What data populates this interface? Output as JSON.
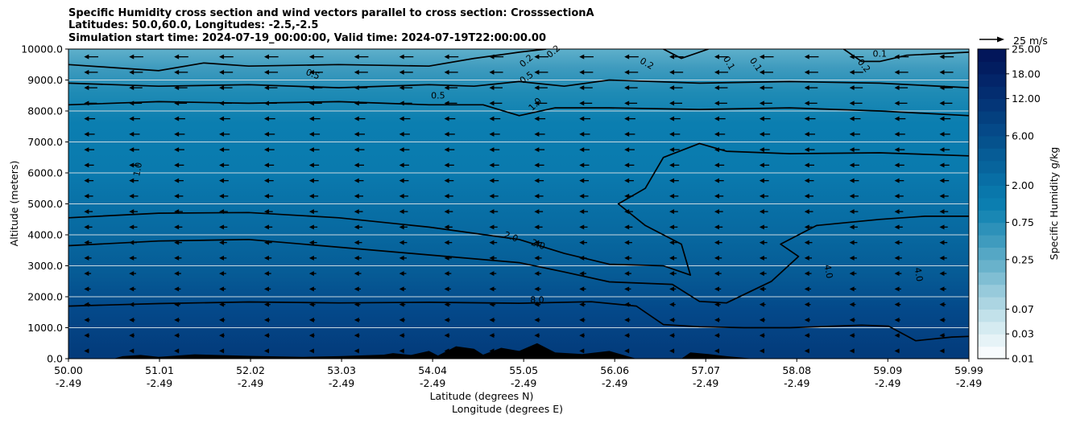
{
  "chart_data": {
    "type": "contour",
    "title_lines": [
      "Specific Humidity cross section and wind vectors parallel to cross section: CrosssectionA",
      "Latitudes: 50.0,60.0, Longitudes: -2.5,-2.5",
      "Simulation start time: 2024-07-19_00:00:00, Valid time: 2024-07-19T22:00:00.00"
    ],
    "ylabel": "Altitude (meters)",
    "xlabel_lat": "Latitude (degrees N)",
    "xlabel_lon": "Longitude (degrees E)",
    "ylim": [
      0,
      10000
    ],
    "xlim": [
      50.0,
      59.99
    ],
    "y_ticks": [
      "0.0",
      "1000.0",
      "2000.0",
      "3000.0",
      "4000.0",
      "5000.0",
      "6000.0",
      "7000.0",
      "8000.0",
      "9000.0",
      "10000.0"
    ],
    "x_ticks_lat": [
      "50.00",
      "51.01",
      "52.02",
      "53.03",
      "54.04",
      "55.05",
      "56.06",
      "57.07",
      "58.08",
      "59.09",
      "59.99"
    ],
    "x_ticks_lon": [
      "-2.49",
      "-2.49",
      "-2.49",
      "-2.49",
      "-2.49",
      "-2.49",
      "-2.49",
      "-2.49",
      "-2.49",
      "-2.49",
      "-2.49"
    ],
    "colorbar": {
      "label": "Specific Humidity g/kg",
      "levels": [
        0.01,
        0.02,
        0.03,
        0.05,
        0.07,
        0.1,
        0.15,
        0.2,
        0.25,
        0.3,
        0.5,
        0.75,
        1.0,
        1.5,
        2.0,
        3.0,
        4.0,
        5.0,
        6.0,
        8.0,
        10.0,
        12.0,
        15.0,
        18.0,
        20.0,
        25.0
      ],
      "tick_labels": [
        "0.01",
        "0.03",
        "0.07",
        "0.25",
        "0.75",
        "2.00",
        "6.00",
        "12.00",
        "18.00",
        "25.00"
      ],
      "colors": [
        "#f7fbfd",
        "#e6f3f7",
        "#d5ebf1",
        "#c2e1ea",
        "#acd5e2",
        "#97cadb",
        "#80bed3",
        "#69b2cb",
        "#55a7c5",
        "#3f9bbe",
        "#2d91b9",
        "#1987b4",
        "#0b7eb0",
        "#0977ab",
        "#086ea5",
        "#07649c",
        "#065c96",
        "#05528d",
        "#054988",
        "#04407f",
        "#043678",
        "#032d70",
        "#032569",
        "#021d60",
        "#02165a"
      ]
    },
    "quiver_key": {
      "label": "25 m/s",
      "speed": 25
    },
    "contour_labels": [
      "0.1",
      "0.2",
      "0.5",
      "1.0",
      "2.0",
      "4.0",
      "8.0"
    ],
    "contour_label_instances": [
      "0.1",
      "0.1",
      "0.1",
      "0.2",
      "0.2",
      "0.2",
      "0.2",
      "0.5",
      "0.5",
      "0.5",
      "1.0",
      "1.0",
      "2.0",
      "2.0",
      "4.0",
      "4.0",
      "8.0"
    ],
    "contours": [
      {
        "level": 8.0,
        "points": [
          [
            50.0,
            1700
          ],
          [
            51.0,
            1780
          ],
          [
            52.0,
            1830
          ],
          [
            53.0,
            1800
          ],
          [
            54.0,
            1820
          ],
          [
            55.0,
            1790
          ],
          [
            55.8,
            1840
          ],
          [
            56.3,
            1700
          ],
          [
            56.6,
            1100
          ],
          [
            57.0,
            1030
          ],
          [
            57.5,
            1000
          ],
          [
            58.0,
            1000
          ],
          [
            58.8,
            1080
          ],
          [
            59.1,
            1050
          ],
          [
            59.4,
            580
          ],
          [
            59.8,
            700
          ],
          [
            59.99,
            720
          ]
        ]
      },
      {
        "level": 4.0,
        "points": [
          [
            50.0,
            3650
          ],
          [
            51.0,
            3800
          ],
          [
            52.0,
            3850
          ],
          [
            53.0,
            3600
          ],
          [
            54.0,
            3350
          ],
          [
            55.0,
            3100
          ],
          [
            55.5,
            2800
          ],
          [
            56.0,
            2480
          ],
          [
            56.7,
            2400
          ],
          [
            57.0,
            1850
          ],
          [
            57.3,
            1800
          ],
          [
            57.8,
            2500
          ],
          [
            58.1,
            3300
          ],
          [
            57.9,
            3700
          ],
          [
            58.3,
            4300
          ],
          [
            59.0,
            4500
          ],
          [
            59.5,
            4600
          ],
          [
            59.99,
            4600
          ]
        ]
      },
      {
        "level": 2.0,
        "points": [
          [
            50.0,
            4550
          ],
          [
            51.0,
            4700
          ],
          [
            52.0,
            4720
          ],
          [
            53.0,
            4550
          ],
          [
            54.0,
            4250
          ],
          [
            55.0,
            3850
          ],
          [
            55.5,
            3400
          ],
          [
            56.0,
            3050
          ],
          [
            56.6,
            3000
          ],
          [
            56.9,
            2700
          ],
          [
            56.8,
            3700
          ],
          [
            56.4,
            4300
          ],
          [
            56.1,
            5000
          ],
          [
            56.4,
            5500
          ],
          [
            56.6,
            6500
          ],
          [
            57.0,
            6950
          ],
          [
            57.3,
            6700
          ],
          [
            58.0,
            6620
          ],
          [
            59.0,
            6650
          ],
          [
            59.99,
            6550
          ]
        ]
      },
      {
        "level": 1.0,
        "points": [
          [
            50.0,
            8200
          ],
          [
            51.0,
            8300
          ],
          [
            52.0,
            8250
          ],
          [
            53.0,
            8300
          ],
          [
            54.0,
            8200
          ],
          [
            54.6,
            8200
          ],
          [
            55.0,
            7850
          ],
          [
            55.4,
            8100
          ],
          [
            56.0,
            8100
          ],
          [
            57.0,
            8050
          ],
          [
            58.0,
            8100
          ],
          [
            59.0,
            8000
          ],
          [
            59.99,
            7850
          ]
        ]
      },
      {
        "level": 0.5,
        "points": [
          [
            50.0,
            8900
          ],
          [
            51.0,
            8800
          ],
          [
            52.0,
            8850
          ],
          [
            53.0,
            8750
          ],
          [
            54.0,
            8850
          ],
          [
            54.5,
            8800
          ],
          [
            55.0,
            8950
          ],
          [
            55.5,
            8800
          ],
          [
            56.0,
            9000
          ],
          [
            57.0,
            8900
          ],
          [
            58.0,
            8950
          ],
          [
            59.0,
            8900
          ],
          [
            59.99,
            8750
          ]
        ]
      },
      {
        "level": 0.2,
        "points": [
          [
            50.0,
            9500
          ],
          [
            50.5,
            9400
          ],
          [
            51.0,
            9300
          ],
          [
            51.5,
            9550
          ],
          [
            52.0,
            9450
          ],
          [
            53.0,
            9500
          ],
          [
            54.0,
            9450
          ],
          [
            54.5,
            9700
          ],
          [
            55.0,
            9900
          ],
          [
            55.3,
            10000
          ]
        ]
      },
      {
        "level": 0.2,
        "points": [
          [
            56.6,
            10000
          ],
          [
            56.8,
            9700
          ],
          [
            57.1,
            10000
          ]
        ]
      },
      {
        "level": 0.1,
        "points": [
          [
            58.6,
            10000
          ],
          [
            58.8,
            9600
          ],
          [
            59.0,
            9600
          ],
          [
            59.3,
            9800
          ],
          [
            59.99,
            9900
          ]
        ]
      }
    ],
    "terrain": [
      [
        50.0,
        0
      ],
      [
        50.5,
        0
      ],
      [
        50.6,
        80
      ],
      [
        50.8,
        120
      ],
      [
        51.0,
        60
      ],
      [
        51.4,
        140
      ],
      [
        52.0,
        90
      ],
      [
        52.6,
        60
      ],
      [
        53.0,
        80
      ],
      [
        53.5,
        130
      ],
      [
        53.6,
        180
      ],
      [
        53.8,
        120
      ],
      [
        54.0,
        250
      ],
      [
        54.1,
        100
      ],
      [
        54.3,
        400
      ],
      [
        54.5,
        320
      ],
      [
        54.6,
        130
      ],
      [
        54.8,
        350
      ],
      [
        55.0,
        250
      ],
      [
        55.2,
        500
      ],
      [
        55.4,
        200
      ],
      [
        55.7,
        150
      ],
      [
        56.0,
        250
      ],
      [
        56.3,
        0
      ],
      [
        56.8,
        0
      ],
      [
        56.9,
        200
      ],
      [
        57.1,
        150
      ],
      [
        57.3,
        80
      ],
      [
        57.6,
        0
      ],
      [
        59.99,
        0
      ]
    ]
  }
}
